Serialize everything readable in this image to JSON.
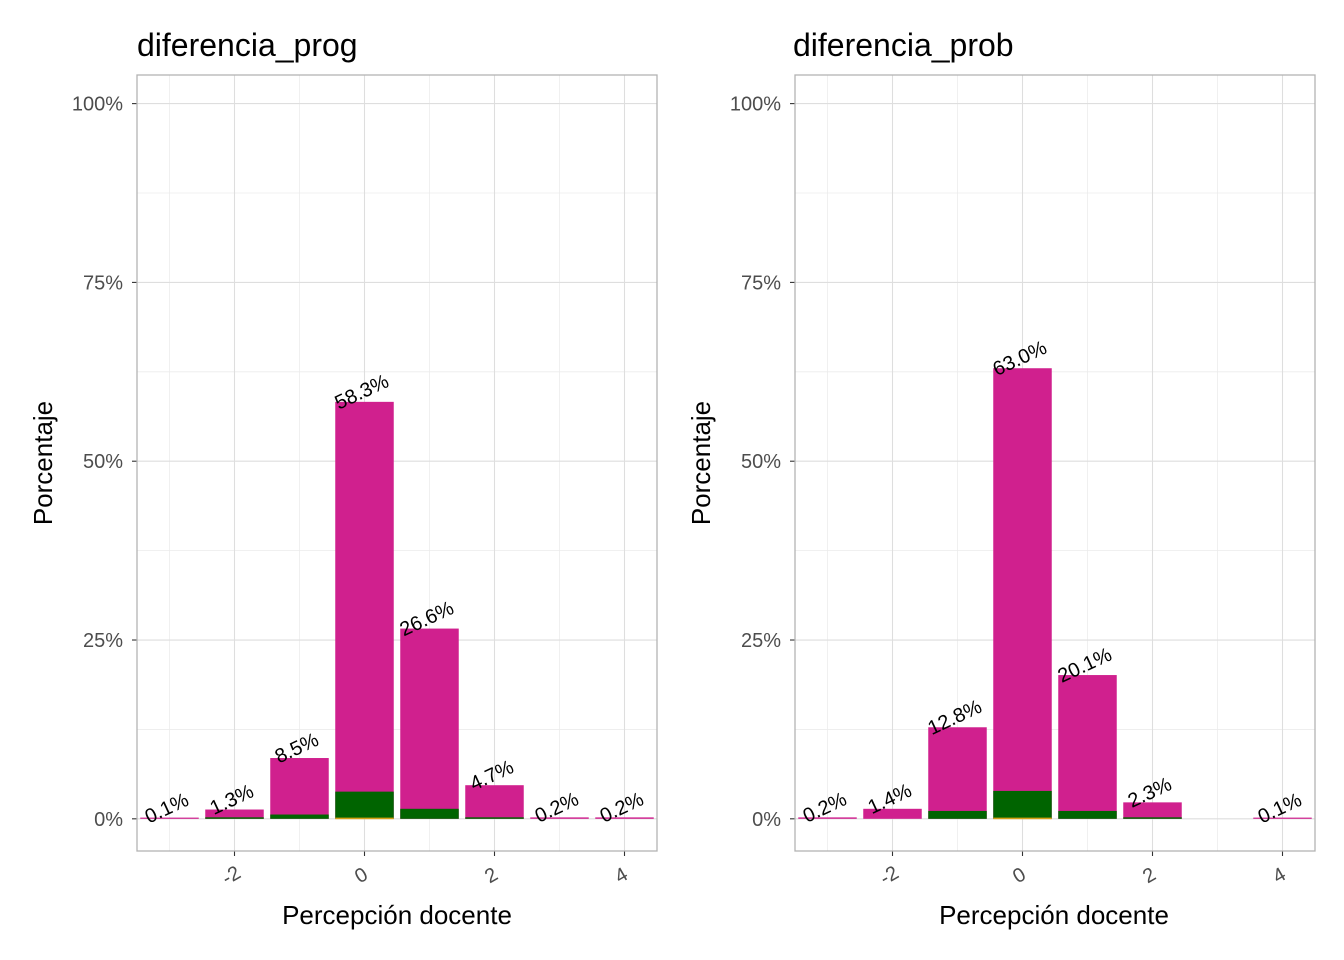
{
  "chart_data": [
    {
      "type": "bar",
      "title": "diferencia_prog",
      "xlabel": "Percepción docente",
      "ylabel": "Porcentaje",
      "x_ticks": [
        -2,
        0,
        2,
        4
      ],
      "x_tick_labels": [
        "-2",
        "0",
        "2",
        "4"
      ],
      "xlim": [
        -3.5,
        4.5
      ],
      "y_ticks": [
        0,
        25,
        50,
        75,
        100
      ],
      "y_tick_labels": [
        "0%",
        "25%",
        "50%",
        "75%",
        "100%"
      ],
      "ylim": [
        -4.5,
        104
      ],
      "grid": true,
      "bars": [
        {
          "x": -3,
          "value": 0.1,
          "label": "0.1%",
          "green": 0.0
        },
        {
          "x": -2,
          "value": 1.3,
          "label": "1.3%",
          "green": 0.2
        },
        {
          "x": -1,
          "value": 8.5,
          "label": "8.5%",
          "green": 0.6
        },
        {
          "x": 0,
          "value": 58.3,
          "label": "58.3%",
          "green": 3.8
        },
        {
          "x": 1,
          "value": 26.6,
          "label": "26.6%",
          "green": 1.4
        },
        {
          "x": 2,
          "value": 4.7,
          "label": "4.7%",
          "green": 0.2
        },
        {
          "x": 3,
          "value": 0.2,
          "label": "0.2%",
          "green": 0.0
        },
        {
          "x": 4,
          "value": 0.2,
          "label": "0.2%",
          "green": 0.0
        }
      ],
      "colors": {
        "main": "#D0208E",
        "secondary": "#006400",
        "accent": "#D4A017"
      }
    },
    {
      "type": "bar",
      "title": "diferencia_prob",
      "xlabel": "Percepción docente",
      "ylabel": "Porcentaje",
      "x_ticks": [
        -2,
        0,
        2,
        4
      ],
      "x_tick_labels": [
        "-2",
        "0",
        "2",
        "4"
      ],
      "xlim": [
        -3.5,
        4.5
      ],
      "y_ticks": [
        0,
        25,
        50,
        75,
        100
      ],
      "y_tick_labels": [
        "0%",
        "25%",
        "50%",
        "75%",
        "100%"
      ],
      "ylim": [
        -4.5,
        104
      ],
      "grid": true,
      "bars": [
        {
          "x": -3,
          "value": 0.2,
          "label": "0.2%",
          "green": 0.0
        },
        {
          "x": -2,
          "value": 1.4,
          "label": "1.4%",
          "green": 0.0
        },
        {
          "x": -1,
          "value": 12.8,
          "label": "12.8%",
          "green": 1.1
        },
        {
          "x": 0,
          "value": 63.0,
          "label": "63.0%",
          "green": 3.9
        },
        {
          "x": 1,
          "value": 20.1,
          "label": "20.1%",
          "green": 1.1
        },
        {
          "x": 2,
          "value": 2.3,
          "label": "2.3%",
          "green": 0.2
        },
        {
          "x": 4,
          "value": 0.1,
          "label": "0.1%",
          "green": 0.0
        }
      ],
      "colors": {
        "main": "#D0208E",
        "secondary": "#006400",
        "accent": "#D4A017"
      }
    }
  ]
}
